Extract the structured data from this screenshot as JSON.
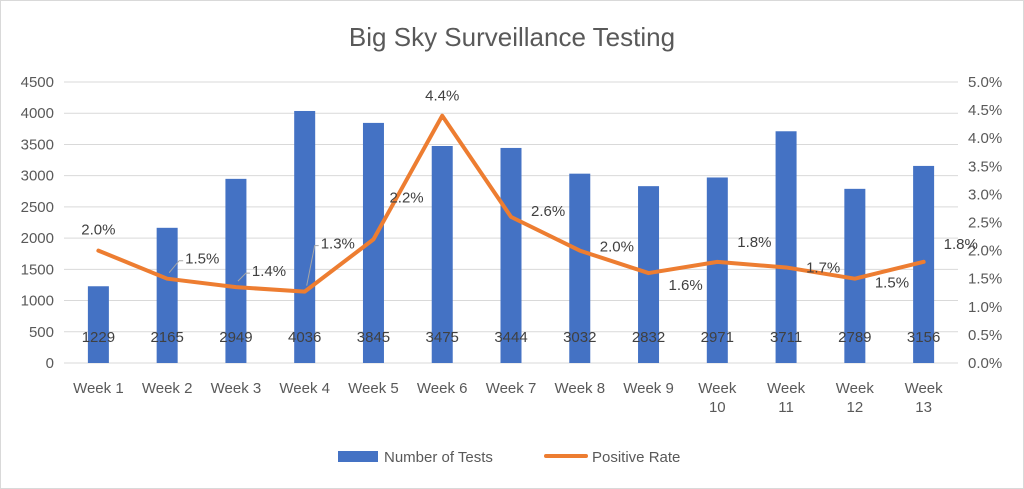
{
  "chart_data": {
    "type": "bar+line",
    "title": "Big Sky Surveillance Testing",
    "categories": [
      [
        "Week 1"
      ],
      [
        "Week 2"
      ],
      [
        "Week 3"
      ],
      [
        "Week 4"
      ],
      [
        "Week 5"
      ],
      [
        "Week 6"
      ],
      [
        "Week 7"
      ],
      [
        "Week 8"
      ],
      [
        "Week 9"
      ],
      [
        "Week",
        "10"
      ],
      [
        "Week",
        "11"
      ],
      [
        "Week",
        "12"
      ],
      [
        "Week",
        "13"
      ]
    ],
    "series": [
      {
        "name": "Number of Tests",
        "type": "bar",
        "axis": "left",
        "color": "#4472c4",
        "values": [
          1229,
          2165,
          2949,
          4036,
          3845,
          3475,
          3444,
          3032,
          2832,
          2971,
          3711,
          2789,
          3156
        ],
        "labels": [
          "1229",
          "2165",
          "2949",
          "4036",
          "3845",
          "3475",
          "3444",
          "3032",
          "2832",
          "2971",
          "3711",
          "2789",
          "3156"
        ]
      },
      {
        "name": "Positive Rate",
        "type": "line",
        "axis": "right",
        "color": "#ed7d31",
        "values": [
          0.02,
          0.015,
          0.0135,
          0.0127,
          0.022,
          0.044,
          0.026,
          0.02,
          0.016,
          0.018,
          0.017,
          0.015,
          0.018
        ],
        "labels": [
          "2.0%",
          "1.5%",
          "1.4%",
          "1.3%",
          "2.2%",
          "4.4%",
          "2.6%",
          "2.0%",
          "1.6%",
          "1.8%",
          "1.7%",
          "1.5%",
          "1.8%"
        ]
      }
    ],
    "y_left": {
      "min": 0,
      "max": 4500,
      "step": 500,
      "ticks": [
        "0",
        "500",
        "1000",
        "1500",
        "2000",
        "2500",
        "3000",
        "3500",
        "4000",
        "4500"
      ]
    },
    "y_right": {
      "min": 0,
      "max": 0.05,
      "step": 0.005,
      "ticks": [
        "0.0%",
        "0.5%",
        "1.0%",
        "1.5%",
        "2.0%",
        "2.5%",
        "3.0%",
        "3.5%",
        "4.0%",
        "4.5%",
        "5.0%"
      ]
    },
    "grid": true,
    "legend_position": "bottom",
    "gridline_color": "#d9d9d9",
    "leader_line_color": "#a6a6a6"
  }
}
